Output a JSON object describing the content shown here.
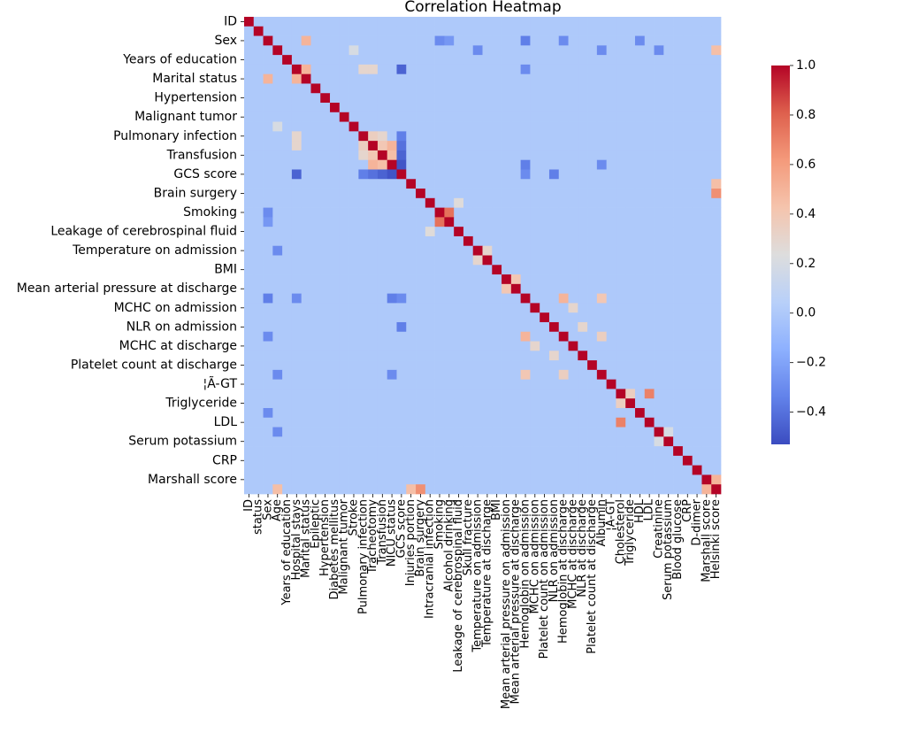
{
  "chart_data": {
    "type": "heatmap",
    "title": "Correlation Heatmap",
    "xlabel": "",
    "ylabel": "",
    "variables": [
      "ID",
      "status",
      "Sex",
      "Age",
      "Years of education",
      "Hospital stays",
      "Marital status",
      "Epileptic",
      "Hypertension",
      "Diabetes mellitus",
      "Malignant tumor",
      "Stroke",
      "Pulmonary infection",
      "Tracheotomy",
      "Transfusion",
      "NICU status",
      "GCS score",
      "Injuries portion",
      "Brain surgery",
      "Intracranial infection",
      "Smoking",
      "Alcohol drinking",
      "Leakage of cerebrospinal fluid",
      "Skull fracture",
      "Temperature on admission",
      "Temperature at discharge",
      "BMI",
      "Mean arterial pressure on admission",
      "Mean arterial pressure at discharge",
      "Hemoglobin on admission",
      "MCHC on admission",
      "Platelet count on admission",
      "NLR on admission",
      "Hemoglobin at discharge",
      "MCHC at discharge",
      "NLR at discharge",
      "Platelet count at discharge",
      "Albumin",
      "¦Ã-GT",
      "Cholesterol",
      "Triglyceride",
      "HDL",
      "LDL",
      "Creatinine",
      "Serum potassium",
      "Blood glucose",
      "CRP",
      "D-dimer",
      "Marshall score",
      "Helsinki score"
    ],
    "x_tick_labels": [
      "ID",
      "status",
      "Sex",
      "Age",
      "Years of education",
      "Hospital stays",
      "Marital status",
      "Epileptic",
      "Hypertension",
      "Diabetes mellitus",
      "Malignant tumor",
      "Stroke",
      "Pulmonary infection",
      "Tracheotomy",
      "Transfusion",
      "NICU status",
      "GCS score",
      "Injuries portion",
      "Brain surgery",
      "Intracranial infection",
      "Smoking",
      "Alcohol drinking",
      "Leakage of cerebrospinal fluid",
      "Skull fracture",
      "Temperature on admission",
      "Temperature at discharge",
      "BMI",
      "Mean arterial pressure on admission",
      "Mean arterial pressure at discharge",
      "Hemoglobin on admission",
      "MCHC on admission",
      "Platelet count on admission",
      "NLR on admission",
      "Hemoglobin at discharge",
      "MCHC at discharge",
      "NLR at discharge",
      "Platelet count at discharge",
      "Albumin",
      "¦Ã-GT",
      "Cholesterol",
      "Triglyceride",
      "HDL",
      "LDL",
      "Creatinine",
      "Serum potassium",
      "Blood glucose",
      "CRP",
      "D-dimer",
      "Marshall score",
      "Helsinki score"
    ],
    "y_tick_labels": [
      "ID",
      "Sex",
      "Years of education",
      "Marital status",
      "Hypertension",
      "Malignant tumor",
      "Pulmonary infection",
      "Transfusion",
      "GCS score",
      "Brain surgery",
      "Smoking",
      "Leakage of cerebrospinal fluid",
      "Temperature on admission",
      "BMI",
      "Mean arterial pressure at discharge",
      "MCHC on admission",
      "NLR on admission",
      "MCHC at discharge",
      "Platelet count at discharge",
      "¦Ã-GT",
      "Triglyceride",
      "LDL",
      "Serum potassium",
      "CRP",
      "Marshall score"
    ],
    "y_tick_rows": [
      0,
      2,
      4,
      6,
      8,
      10,
      12,
      14,
      16,
      18,
      20,
      22,
      24,
      26,
      28,
      30,
      32,
      34,
      36,
      38,
      40,
      42,
      44,
      46,
      48
    ],
    "colorbar": {
      "colormap": "coolwarm",
      "vmin": -0.53,
      "vmax": 1.0,
      "ticks": [
        1.0,
        0.8,
        0.6,
        0.4,
        0.2,
        0.0,
        -0.2,
        -0.4
      ],
      "tick_labels": [
        "1.0",
        "0.8",
        "0.6",
        "0.4",
        "0.2",
        "0.0",
        "−0.2",
        "−0.4"
      ]
    },
    "diagonal_value": 1.0,
    "notable_correlations": [
      {
        "a": "Smoking",
        "b": "Alcohol drinking",
        "value": 0.75
      },
      {
        "a": "Cholesterol",
        "b": "LDL",
        "value": 0.7
      },
      {
        "a": "Brain surgery",
        "b": "Helsinki score",
        "value": 0.65
      },
      {
        "a": "Sex",
        "b": "Marital status",
        "value": 0.5
      },
      {
        "a": "Hospital stays",
        "b": "Marital status",
        "value": 0.5
      },
      {
        "a": "Age",
        "b": "Helsinki score",
        "value": 0.45
      },
      {
        "a": "Marshall score",
        "b": "Helsinki score",
        "value": 0.5
      },
      {
        "a": "Injuries portion",
        "b": "Helsinki score",
        "value": 0.45
      },
      {
        "a": "Tracheotomy",
        "b": "NICU status",
        "value": 0.5
      },
      {
        "a": "Transfusion",
        "b": "NICU status",
        "value": 0.45
      },
      {
        "a": "Pulmonary infection",
        "b": "Tracheotomy",
        "value": 0.35
      },
      {
        "a": "Pulmonary infection",
        "b": "Transfusion",
        "value": 0.3
      },
      {
        "a": "Tracheotomy",
        "b": "Transfusion",
        "value": 0.4
      },
      {
        "a": "Hemoglobin on admission",
        "b": "Hemoglobin at discharge",
        "value": 0.5
      },
      {
        "a": "Hemoglobin on admission",
        "b": "Albumin",
        "value": 0.4
      },
      {
        "a": "Hemoglobin at discharge",
        "b": "Albumin",
        "value": 0.35
      },
      {
        "a": "Mean arterial pressure on admission",
        "b": "Mean arterial pressure at discharge",
        "value": 0.4
      },
      {
        "a": "MCHC on admission",
        "b": "MCHC at discharge",
        "value": 0.3
      },
      {
        "a": "NLR on admission",
        "b": "NLR at discharge",
        "value": 0.3
      },
      {
        "a": "Temperature on admission",
        "b": "Temperature at discharge",
        "value": 0.3
      },
      {
        "a": "Intracranial infection",
        "b": "Leakage of cerebrospinal fluid",
        "value": 0.25
      },
      {
        "a": "Creatinine",
        "b": "Serum potassium",
        "value": 0.2
      },
      {
        "a": "Cholesterol",
        "b": "Triglyceride",
        "value": 0.35
      },
      {
        "a": "Hospital stays",
        "b": "Tracheotomy",
        "value": 0.3
      },
      {
        "a": "Hospital stays",
        "b": "Pulmonary infection",
        "value": 0.3
      },
      {
        "a": "GCS score",
        "b": "NICU status",
        "value": -0.5
      },
      {
        "a": "GCS score",
        "b": "Transfusion",
        "value": -0.45
      },
      {
        "a": "GCS score",
        "b": "Hospital stays",
        "value": -0.45
      },
      {
        "a": "GCS score",
        "b": "Tracheotomy",
        "value": -0.4
      },
      {
        "a": "GCS score",
        "b": "Pulmonary infection",
        "value": -0.35
      },
      {
        "a": "GCS score",
        "b": "Hemoglobin on admission",
        "value": -0.3
      },
      {
        "a": "GCS score",
        "b": "NLR on admission",
        "value": -0.35
      },
      {
        "a": "Hospital stays",
        "b": "Hemoglobin on admission",
        "value": -0.3
      },
      {
        "a": "NICU status",
        "b": "Hemoglobin on admission",
        "value": -0.35
      },
      {
        "a": "NICU status",
        "b": "Albumin",
        "value": -0.3
      },
      {
        "a": "Sex",
        "b": "Hemoglobin on admission",
        "value": -0.35
      },
      {
        "a": "Sex",
        "b": "Hemoglobin at discharge",
        "value": -0.3
      },
      {
        "a": "Sex",
        "b": "HDL",
        "value": -0.3
      },
      {
        "a": "Age",
        "b": "Temperature on admission",
        "value": -0.3
      },
      {
        "a": "Age",
        "b": "Albumin",
        "value": -0.3
      },
      {
        "a": "Age",
        "b": "Creatinine",
        "value": -0.3
      },
      {
        "a": "Smoking",
        "b": "Sex",
        "value": -0.3
      },
      {
        "a": "Alcohol drinking",
        "b": "Sex",
        "value": -0.25
      },
      {
        "a": "Stroke",
        "b": "Age",
        "value": 0.2
      }
    ],
    "baseline_value": 0.0,
    "grid": false,
    "legend": "colorbar-right"
  }
}
